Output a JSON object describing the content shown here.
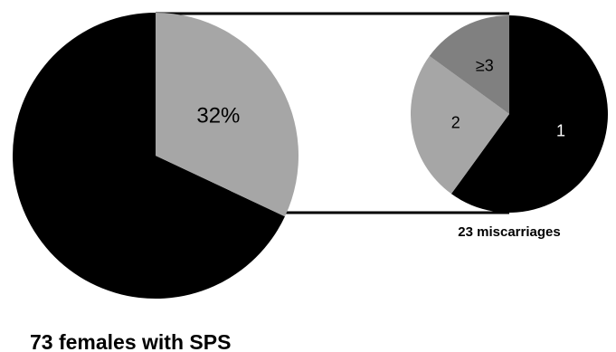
{
  "chart_data": [
    {
      "type": "pie",
      "caption": "73 females with SPS",
      "slices": [
        {
          "label": "",
          "value": 68,
          "color": "#000000"
        },
        {
          "label": "32%",
          "value": 32,
          "color": "#a6a6a6"
        }
      ]
    },
    {
      "type": "pie",
      "caption": "23 miscarriages",
      "slices": [
        {
          "label": "1",
          "value": 60,
          "color": "#000000",
          "label_color": "#ffffff"
        },
        {
          "label": "2",
          "value": 25,
          "color": "#a6a6a6",
          "label_color": "#000000"
        },
        {
          "label": "≥3",
          "value": 15,
          "color": "#808080",
          "label_color": "#000000"
        }
      ]
    }
  ]
}
